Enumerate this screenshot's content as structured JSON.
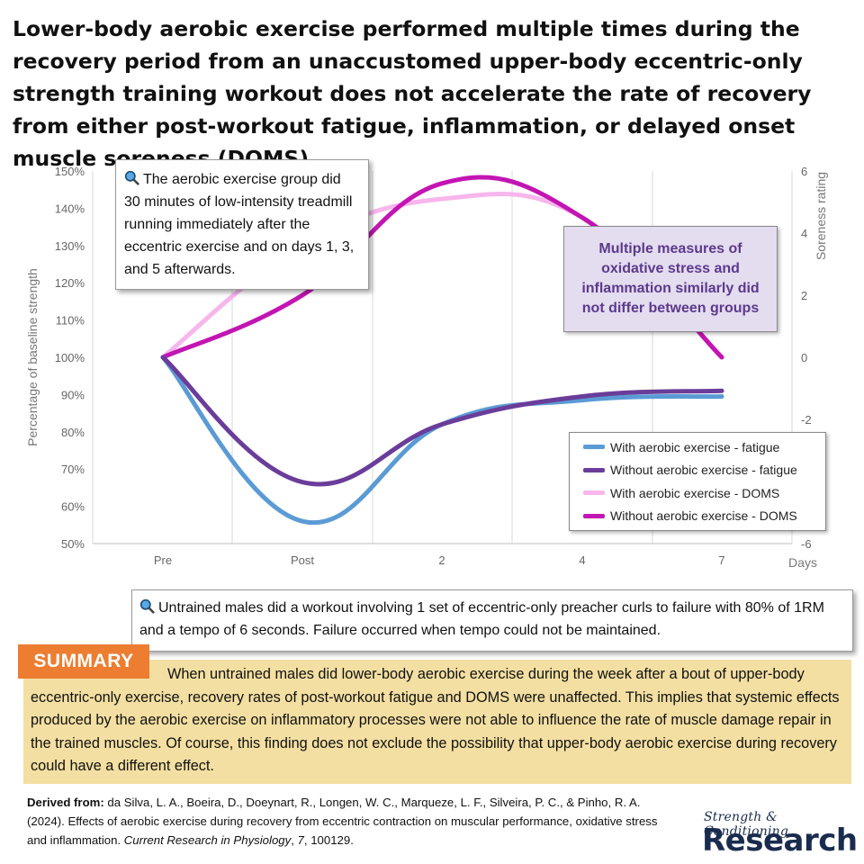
{
  "title": "Lower-body aerobic exercise performed multiple times during the recovery period from an unaccustomed upper-body eccentric-only strength training workout does not accelerate the rate of recovery from either post-workout fatigue, inflammation, or delayed onset muscle soreness (DOMS).",
  "callout_top": {
    "icon": "magnifier-icon",
    "text": "The aerobic exercise group did 30 minutes of low-intensity treadmill running immediately after the eccentric exercise and on days 1, 3, and 5 afterwards."
  },
  "purple_box": {
    "text": "Multiple measures of oxidative stress and inflammation similarly did not differ between groups"
  },
  "callout_bottom": {
    "icon": "magnifier-icon",
    "text": "Untrained males did a workout involving 1 set of eccentric-only preacher curls to failure with 80% of 1RM and a tempo of 6 seconds. Failure occurred when tempo could not be maintained."
  },
  "summary": {
    "tag": "SUMMARY",
    "text": "When untrained males did lower-body aerobic exercise during the week after a bout of upper-body eccentric-only exercise, recovery rates of post-workout fatigue and DOMS were unaffected. This implies that systemic effects produced by the aerobic exercise on inflammatory processes were not able to influence the rate of muscle damage repair in the trained muscles. Of course, this finding does not exclude the possibility that upper-body aerobic exercise during recovery could have a different effect."
  },
  "citation": {
    "label": "Derived from:",
    "authors": "da Silva, L. A., Boeira, D., Doeynart, R., Longen, W. C., Marqueze, L. F., Silveira, P. C., & Pinho, R. A. (2024). Effects of aerobic exercise during recovery from eccentric contraction on muscular performance, oxidative stress and inflammation.",
    "journal": "Current Research in Physiology",
    "volume": "7",
    "rest": ", 100129."
  },
  "brand": {
    "line1": "Strength & Conditioning",
    "line2": "Research"
  },
  "chart_data": {
    "type": "line",
    "categories": [
      "Pre",
      "Post",
      "2",
      "4",
      "7"
    ],
    "xlabel": "Days",
    "ylabel": "Percentage of baseline strength",
    "y2label": "Soreness rating",
    "ylim": [
      50,
      150
    ],
    "yticks": [
      50,
      60,
      70,
      80,
      90,
      100,
      110,
      120,
      130,
      140,
      150
    ],
    "ytick_labels": [
      "50%",
      "60%",
      "70%",
      "80%",
      "90%",
      "100%",
      "110%",
      "120%",
      "130%",
      "140%",
      "150%"
    ],
    "y2lim": [
      -6,
      6
    ],
    "y2ticks": [
      -6,
      -2,
      0,
      2,
      4,
      6
    ],
    "grid": "vertical",
    "legend_position": "bottom-right",
    "series": [
      {
        "name": "With aerobic exercise - fatigue",
        "axis": "left",
        "color": "#5b9bd5",
        "values": [
          100,
          56,
          82,
          88.5,
          89.5
        ]
      },
      {
        "name": "Without aerobic exercise - fatigue",
        "axis": "left",
        "color": "#6a3d9a",
        "values": [
          100,
          66.5,
          82,
          89.5,
          91
        ]
      },
      {
        "name": "With aerobic exercise - DOMS",
        "axis": "right",
        "color": "#f7b6ec",
        "values": [
          0,
          3.6,
          5.1,
          4.5,
          0
        ]
      },
      {
        "name": "Without aerobic exercise - DOMS",
        "axis": "right",
        "color": "#c315b3",
        "values": [
          0,
          2,
          5.6,
          4.5,
          0
        ]
      }
    ]
  }
}
